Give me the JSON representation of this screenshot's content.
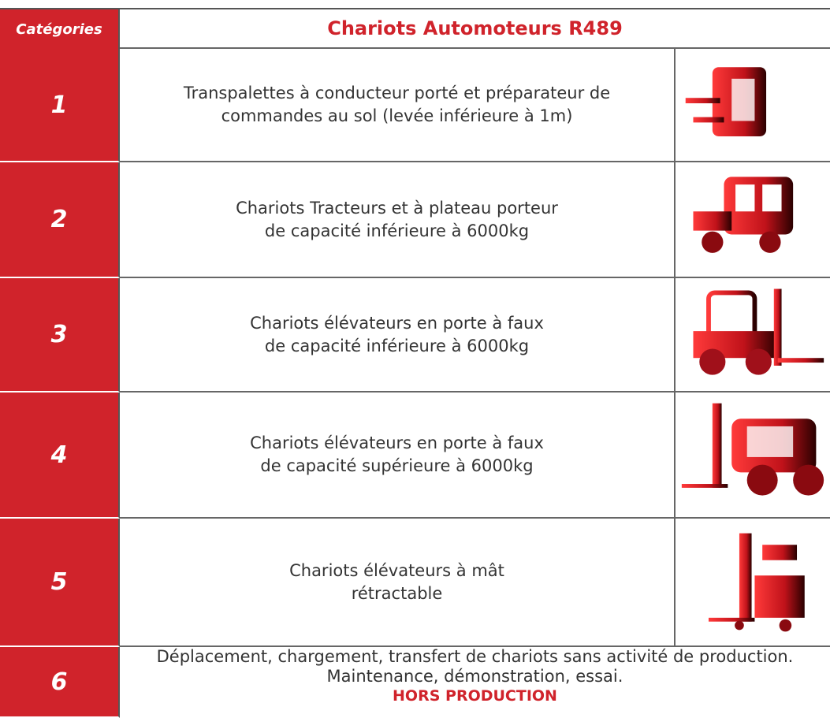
{
  "header": {
    "category_label": "Catégories",
    "title": "Chariots Automoteurs R489"
  },
  "rows": [
    {
      "number": "1",
      "lines": [
        "Transpalettes à conducteur porté et préparateur de",
        "commandes au sol (levée inférieure à 1m)"
      ]
    },
    {
      "number": "2",
      "lines": [
        "Chariots Tracteurs et à plateau porteur",
        "de capacité inférieure à 6000kg"
      ]
    },
    {
      "number": "3",
      "lines": [
        "Chariots élévateurs en porte à faux",
        "de capacité inférieure à 6000kg"
      ]
    },
    {
      "number": "4",
      "lines": [
        "Chariots élévateurs en porte à faux",
        "de capacité supérieure à 6000kg"
      ]
    },
    {
      "number": "5",
      "lines": [
        "Chariots élévateurs à mât",
        "rétractable"
      ]
    },
    {
      "number": "6",
      "lines": [
        "Déplacement, chargement, transfert de chariots sans activité de production.",
        "Maintenance, démonstration, essai."
      ],
      "emphasis": "HORS PRODUCTION"
    }
  ]
}
